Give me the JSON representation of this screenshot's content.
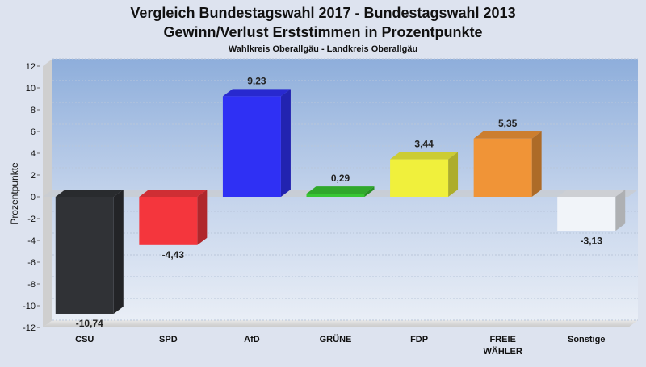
{
  "chart_data": {
    "type": "bar",
    "title": "Vergleich Bundestagswahl 2017 - Bundestagswahl 2013",
    "title2": "Gewinn/Verlust Erststimmen in Prozentpunkte",
    "subtitle": "Wahlkreis Oberallgäu - Landkreis Oberallgäu",
    "ylabel": "Prozentpunkte",
    "xlabel": "",
    "ylim": [
      -12,
      12
    ],
    "ytick_step": 2,
    "grid": true,
    "categories": [
      "CSU",
      "SPD",
      "AfD",
      "GRÜNE",
      "FDP",
      "FREIE WÄHLER",
      "Sonstige"
    ],
    "category_lines": [
      [
        "CSU"
      ],
      [
        "SPD"
      ],
      [
        "AfD"
      ],
      [
        "GRÜNE"
      ],
      [
        "FDP"
      ],
      [
        "FREIE",
        "WÄHLER"
      ],
      [
        "Sonstige"
      ]
    ],
    "values": [
      -10.74,
      -4.43,
      9.23,
      0.29,
      3.44,
      5.35,
      -3.13
    ],
    "value_labels": [
      "-10,74",
      "-4,43",
      "9,23",
      "0,29",
      "3,44",
      "5,35",
      "-3,13"
    ],
    "colors": [
      "#303236",
      "#f4363d",
      "#2f30f4",
      "#38c634",
      "#f0f03c",
      "#f09437",
      "#f1f4f9"
    ]
  }
}
